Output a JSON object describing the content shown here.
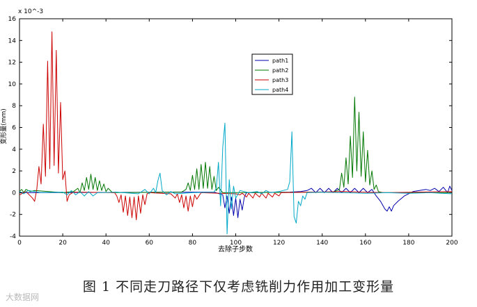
{
  "figure": {
    "caption": "图 1  不同走刀路径下仅考虑铣削力作用加工变形量",
    "watermark": "大数据网"
  },
  "chart_data": {
    "type": "line",
    "title": "",
    "xlabel": "去除子步数",
    "ylabel": "变形量(mm)",
    "exponent_label": "x 10^-3",
    "xlim": [
      0,
      200
    ],
    "ylim": [
      -4,
      16
    ],
    "xticks": [
      0,
      20,
      40,
      60,
      80,
      100,
      120,
      140,
      160,
      180,
      200
    ],
    "yticks": [
      -4,
      -2,
      0,
      2,
      4,
      6,
      8,
      10,
      12,
      14,
      16
    ],
    "grid": false,
    "legend_position": "top-center",
    "series": [
      {
        "name": "path1",
        "color": "#0000aa",
        "points": [
          [
            0,
            0
          ],
          [
            90,
            0.05
          ],
          [
            94,
            -0.2
          ],
          [
            95,
            -1.4
          ],
          [
            96,
            -0.3
          ],
          [
            97,
            -1.9
          ],
          [
            98,
            -0.4
          ],
          [
            99,
            -2.1
          ],
          [
            100,
            -0.5
          ],
          [
            101,
            -2.3
          ],
          [
            102,
            -0.6
          ],
          [
            103,
            -1.6
          ],
          [
            104,
            -0.4
          ],
          [
            105,
            0.0
          ],
          [
            125,
            0.05
          ],
          [
            130,
            0.1
          ],
          [
            133,
            0.2
          ],
          [
            135,
            0.4
          ],
          [
            137,
            0.0
          ],
          [
            139,
            0.4
          ],
          [
            141,
            0.0
          ],
          [
            143,
            0.4
          ],
          [
            145,
            0.0
          ],
          [
            147,
            0.4
          ],
          [
            149,
            0.0
          ],
          [
            151,
            0.4
          ],
          [
            153,
            0.0
          ],
          [
            155,
            0.4
          ],
          [
            157,
            0.0
          ],
          [
            159,
            0.4
          ],
          [
            161,
            0.0
          ],
          [
            163,
            0.3
          ],
          [
            165,
            -0.3
          ],
          [
            167,
            -0.8
          ],
          [
            169,
            -1.5
          ],
          [
            170,
            -1.7
          ],
          [
            171,
            -1.3
          ],
          [
            172,
            -1.7
          ],
          [
            173,
            -1.2
          ],
          [
            175,
            -0.8
          ],
          [
            178,
            -0.3
          ],
          [
            182,
            0.1
          ],
          [
            185,
            0.2
          ],
          [
            188,
            0.3
          ],
          [
            190,
            0.2
          ],
          [
            192,
            0.4
          ],
          [
            194,
            0.1
          ],
          [
            196,
            0.5
          ],
          [
            198,
            0.0
          ],
          [
            199,
            0.6
          ],
          [
            200,
            0.2
          ]
        ]
      },
      {
        "name": "path2",
        "color": "#007700",
        "points": [
          [
            0,
            0.1
          ],
          [
            1,
            0.3
          ],
          [
            2,
            0.0
          ],
          [
            3,
            0.3
          ],
          [
            5,
            0.1
          ],
          [
            7,
            0.2
          ],
          [
            20,
            0.0
          ],
          [
            25,
            0.1
          ],
          [
            27,
            0.4
          ],
          [
            28,
            0.0
          ],
          [
            29,
            0.9
          ],
          [
            30,
            0.2
          ],
          [
            31,
            1.4
          ],
          [
            32,
            0.3
          ],
          [
            33,
            1.7
          ],
          [
            34,
            0.3
          ],
          [
            35,
            1.4
          ],
          [
            36,
            0.2
          ],
          [
            37,
            1.1
          ],
          [
            38,
            0.2
          ],
          [
            39,
            0.8
          ],
          [
            40,
            0.1
          ],
          [
            41,
            0.4
          ],
          [
            43,
            0.0
          ],
          [
            75,
            0.05
          ],
          [
            77,
            0.3
          ],
          [
            78,
            0.9
          ],
          [
            79,
            0.2
          ],
          [
            80,
            1.6
          ],
          [
            81,
            0.3
          ],
          [
            82,
            2.2
          ],
          [
            83,
            0.3
          ],
          [
            84,
            2.6
          ],
          [
            85,
            0.4
          ],
          [
            86,
            2.8
          ],
          [
            87,
            0.4
          ],
          [
            88,
            2.4
          ],
          [
            89,
            0.3
          ],
          [
            90,
            1.5
          ],
          [
            91,
            0.2
          ],
          [
            92,
            0.5
          ],
          [
            94,
            0.0
          ],
          [
            145,
            0.05
          ],
          [
            148,
            0.3
          ],
          [
            149,
            1.8
          ],
          [
            150,
            0.5
          ],
          [
            151,
            3.2
          ],
          [
            152,
            0.8
          ],
          [
            153,
            5.2
          ],
          [
            154,
            1.4
          ],
          [
            155,
            8.8
          ],
          [
            156,
            2.0
          ],
          [
            157,
            7.4
          ],
          [
            158,
            1.5
          ],
          [
            159,
            5.6
          ],
          [
            160,
            1.0
          ],
          [
            161,
            3.9
          ],
          [
            162,
            0.7
          ],
          [
            163,
            2.0
          ],
          [
            164,
            0.3
          ],
          [
            165,
            0.7
          ],
          [
            166,
            0.1
          ],
          [
            168,
            0.0
          ],
          [
            200,
            0.0
          ]
        ]
      },
      {
        "name": "path3",
        "color": "#cc0000",
        "points": [
          [
            0,
            -0.2
          ],
          [
            3,
            0.1
          ],
          [
            6,
            -0.5
          ],
          [
            7,
            -0.8
          ],
          [
            8,
            0.3
          ],
          [
            9,
            2.4
          ],
          [
            10,
            0.8
          ],
          [
            11,
            6.3
          ],
          [
            12,
            1.5
          ],
          [
            13,
            12.1
          ],
          [
            14,
            2.2
          ],
          [
            15,
            14.8
          ],
          [
            16,
            2.5
          ],
          [
            17,
            13.1
          ],
          [
            18,
            1.8
          ],
          [
            19,
            8.3
          ],
          [
            20,
            1.2
          ],
          [
            21,
            2.0
          ],
          [
            22,
            -0.8
          ],
          [
            23,
            -0.2
          ],
          [
            25,
            0.05
          ],
          [
            44,
            0.0
          ],
          [
            45,
            -0.3
          ],
          [
            46,
            -0.9
          ],
          [
            47,
            -0.2
          ],
          [
            48,
            -1.8
          ],
          [
            49,
            -0.3
          ],
          [
            50,
            -2.1
          ],
          [
            51,
            -0.4
          ],
          [
            52,
            -2.3
          ],
          [
            53,
            -0.4
          ],
          [
            54,
            -2.5
          ],
          [
            55,
            -0.3
          ],
          [
            56,
            -1.9
          ],
          [
            57,
            -0.2
          ],
          [
            58,
            -1.1
          ],
          [
            59,
            -0.1
          ],
          [
            60,
            0.0
          ],
          [
            70,
            -0.1
          ],
          [
            72,
            -0.5
          ],
          [
            73,
            -0.1
          ],
          [
            74,
            -0.9
          ],
          [
            75,
            -0.2
          ],
          [
            76,
            -1.4
          ],
          [
            77,
            -0.3
          ],
          [
            78,
            -1.7
          ],
          [
            79,
            -0.3
          ],
          [
            80,
            -1.3
          ],
          [
            81,
            -0.2
          ],
          [
            82,
            -0.6
          ],
          [
            84,
            0.0
          ],
          [
            100,
            -0.1
          ],
          [
            102,
            -0.2
          ],
          [
            103,
            -0.05
          ],
          [
            105,
            -0.4
          ],
          [
            106,
            -0.05
          ],
          [
            108,
            -0.5
          ],
          [
            109,
            -0.05
          ],
          [
            111,
            -0.4
          ],
          [
            112,
            -0.05
          ],
          [
            114,
            -0.5
          ],
          [
            115,
            -0.05
          ],
          [
            117,
            -0.4
          ],
          [
            118,
            -0.05
          ],
          [
            120,
            -0.3
          ],
          [
            121,
            0.0
          ],
          [
            135,
            0.05
          ],
          [
            150,
            0.1
          ],
          [
            158,
            0.05
          ],
          [
            170,
            0.0
          ],
          [
            200,
            0.1
          ]
        ]
      },
      {
        "name": "path4",
        "color": "#00a8c8",
        "points": [
          [
            0,
            0.1
          ],
          [
            2,
            -0.1
          ],
          [
            4,
            0.2
          ],
          [
            10,
            0.0
          ],
          [
            20,
            0.05
          ],
          [
            22,
            -0.2
          ],
          [
            24,
            0.2
          ],
          [
            26,
            -0.2
          ],
          [
            28,
            0.1
          ],
          [
            30,
            -0.3
          ],
          [
            32,
            0.1
          ],
          [
            34,
            -0.3
          ],
          [
            36,
            0.0
          ],
          [
            45,
            0.05
          ],
          [
            55,
            -0.1
          ],
          [
            58,
            0.3
          ],
          [
            60,
            -0.1
          ],
          [
            62,
            0.4
          ],
          [
            63,
            0.0
          ],
          [
            64,
            1.1
          ],
          [
            65,
            1.8
          ],
          [
            66,
            0.2
          ],
          [
            68,
            -0.2
          ],
          [
            70,
            0.1
          ],
          [
            72,
            -0.1
          ],
          [
            80,
            0.0
          ],
          [
            90,
            0.05
          ],
          [
            91,
            0.4
          ],
          [
            92,
            2.8
          ],
          [
            93,
            -1.2
          ],
          [
            94,
            4.2
          ],
          [
            95,
            6.4
          ],
          [
            96,
            -3.8
          ],
          [
            97,
            1.2
          ],
          [
            98,
            -1.5
          ],
          [
            99,
            0.6
          ],
          [
            100,
            -0.5
          ],
          [
            102,
            0.2
          ],
          [
            106,
            0.0
          ],
          [
            110,
            0.1
          ],
          [
            112,
            -0.1
          ],
          [
            114,
            0.2
          ],
          [
            116,
            0.0
          ],
          [
            120,
            0.1
          ],
          [
            124,
            0.3
          ],
          [
            125,
            1.0
          ],
          [
            126,
            5.6
          ],
          [
            127,
            -2.2
          ],
          [
            128,
            -2.8
          ],
          [
            129,
            -0.8
          ],
          [
            130,
            -1.2
          ],
          [
            131,
            -0.3
          ],
          [
            132,
            -0.6
          ],
          [
            133,
            0.0
          ],
          [
            140,
            0.05
          ],
          [
            150,
            0.0
          ],
          [
            160,
            -0.05
          ],
          [
            170,
            0.0
          ],
          [
            180,
            -0.05
          ],
          [
            190,
            0.0
          ],
          [
            200,
            -0.1
          ]
        ]
      }
    ]
  }
}
